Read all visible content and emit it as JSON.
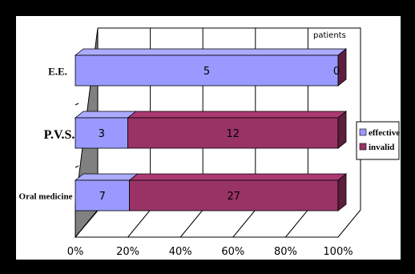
{
  "chart_data": {
    "type": "bar",
    "orientation": "horizontal",
    "stacked": "percent",
    "three_d": true,
    "categories": [
      "E.E.",
      "P.V.S.",
      "Oral medicine"
    ],
    "series": [
      {
        "name": "effective",
        "values": [
          5,
          3,
          7
        ],
        "color": "#9999ff"
      },
      {
        "name": "invalid",
        "values": [
          0,
          12,
          27
        ],
        "color": "#993366"
      }
    ],
    "x_ticks": [
      "0%",
      "20%",
      "40%",
      "60%",
      "80%",
      "100%"
    ],
    "xlim": [
      0,
      100
    ],
    "unit_label": "patients",
    "grid": "vertical",
    "legend_position": "right"
  }
}
